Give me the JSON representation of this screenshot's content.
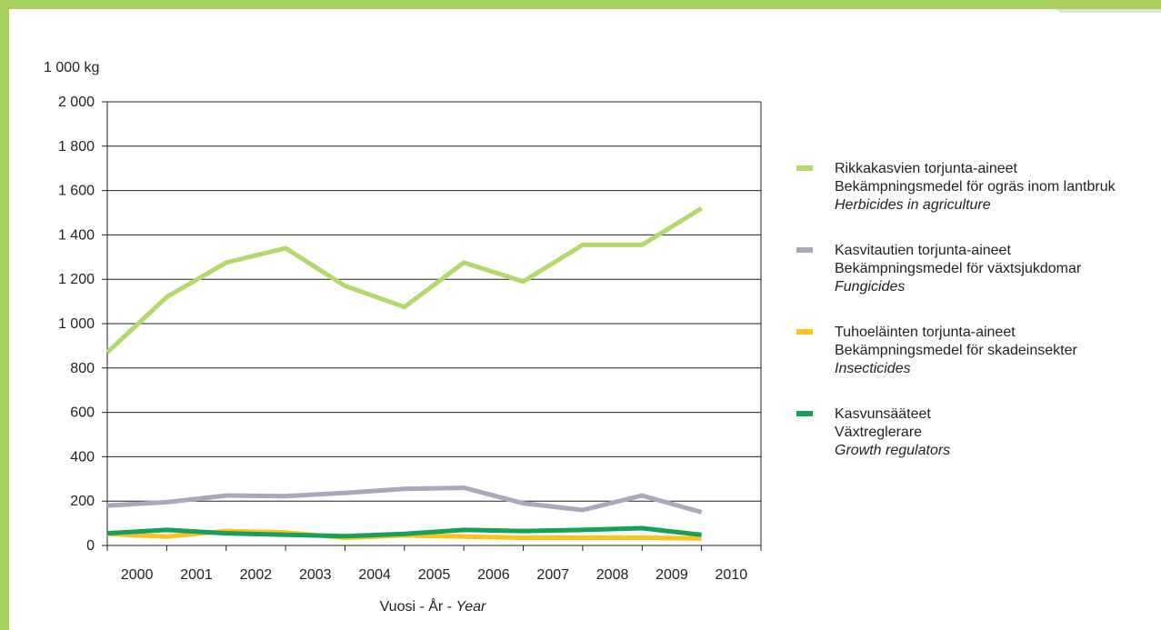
{
  "colors": {
    "frame": "#a8cf5a",
    "herbicides": "#b3d96b",
    "fungicides": "#a9a9bd",
    "insecticides": "#ffc21a",
    "growth": "#16a05a"
  },
  "chart_data": {
    "type": "line",
    "ylabel": "1 000 kg",
    "xlabel": {
      "fi": "Vuosi",
      "sep1": " - ",
      "sv": "År",
      "sep2": " - ",
      "en": "Year"
    },
    "ylim": [
      0,
      2000
    ],
    "y_ticks": [
      "0",
      "200",
      "400",
      "600",
      "800",
      "1 000",
      "1 200",
      "1 400",
      "1 600",
      "1 800",
      "2 000"
    ],
    "categories": [
      "2000",
      "2001",
      "2002",
      "2003",
      "2004",
      "2005",
      "2006",
      "2007",
      "2008",
      "2009",
      "2010"
    ],
    "grid": true,
    "legend_position": "right",
    "series": [
      {
        "key": "herbicides",
        "name_fi": "Rikkakasvien torjunta-aineet",
        "name_sv": "Bekämpningsmedel för ogräs inom lantbruk",
        "name_en": "Herbicides in agriculture",
        "values": [
          870,
          1120,
          1275,
          1340,
          1170,
          1075,
          1275,
          1190,
          1355,
          1355,
          1520
        ]
      },
      {
        "key": "fungicides",
        "name_fi": "Kasvitautien torjunta-aineet",
        "name_sv": "Bekämpningsmedel för växtsjukdomar",
        "name_en": "Fungicides",
        "values": [
          180,
          195,
          225,
          222,
          237,
          255,
          260,
          190,
          160,
          225,
          150
        ]
      },
      {
        "key": "insecticides",
        "name_fi": "Tuhoeläinten torjunta-aineet",
        "name_sv": "Bekämpningsmedel för skadeinsekter",
        "name_en": "Insecticides",
        "values": [
          52,
          40,
          65,
          58,
          35,
          45,
          40,
          35,
          35,
          35,
          32
        ]
      },
      {
        "key": "growth",
        "name_fi": "Kasvunsääteet",
        "name_sv": "Växtreglerare",
        "name_en": "Growth regulators",
        "values": [
          55,
          70,
          55,
          48,
          42,
          52,
          70,
          65,
          70,
          78,
          48
        ]
      }
    ]
  }
}
